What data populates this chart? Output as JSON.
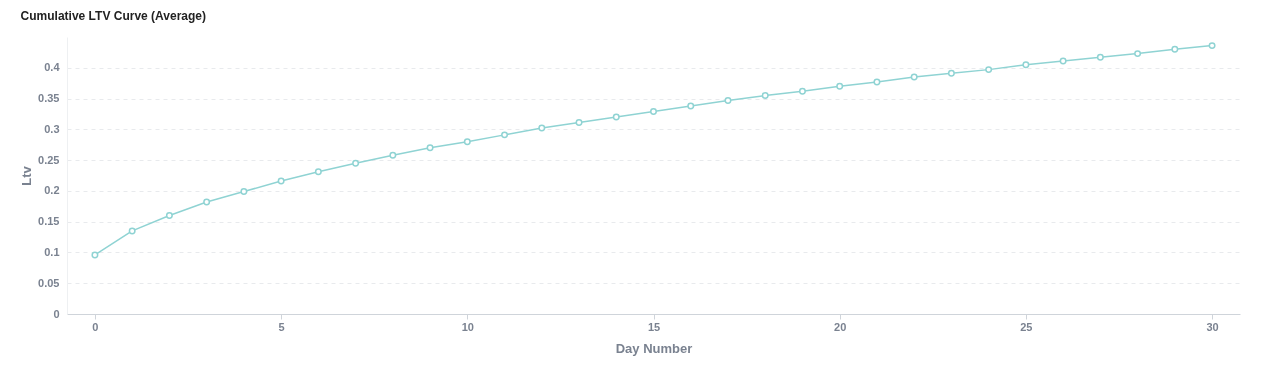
{
  "chart_data": {
    "type": "line",
    "title": "Cumulative LTV Curve (Average)",
    "xlabel": "Day Number",
    "ylabel": "Ltv",
    "x": [
      0,
      1,
      2,
      3,
      4,
      5,
      6,
      7,
      8,
      9,
      10,
      11,
      12,
      13,
      14,
      15,
      16,
      17,
      18,
      19,
      20,
      21,
      22,
      23,
      24,
      25,
      26,
      27,
      28,
      29,
      30
    ],
    "series": [
      {
        "color": "#8fd3d3",
        "values": [
          0.096,
          0.135,
          0.16,
          0.182,
          0.199,
          0.216,
          0.231,
          0.245,
          0.258,
          0.27,
          0.28,
          0.291,
          0.302,
          0.311,
          0.32,
          0.329,
          0.338,
          0.347,
          0.355,
          0.362,
          0.37,
          0.377,
          0.385,
          0.391,
          0.397,
          0.405,
          0.411,
          0.417,
          0.423,
          0.43,
          0.436
        ]
      }
    ],
    "xlim": [
      -0.75,
      30.75
    ],
    "xticks": [
      0,
      5,
      10,
      15,
      20,
      25,
      30
    ],
    "ylim": [
      0,
      0.45
    ],
    "yticks": [
      0,
      0.05,
      0.1,
      0.15,
      0.2,
      0.25,
      0.3,
      0.35,
      0.4
    ],
    "grid": "y",
    "marker": "circle",
    "line_style": "solid"
  }
}
